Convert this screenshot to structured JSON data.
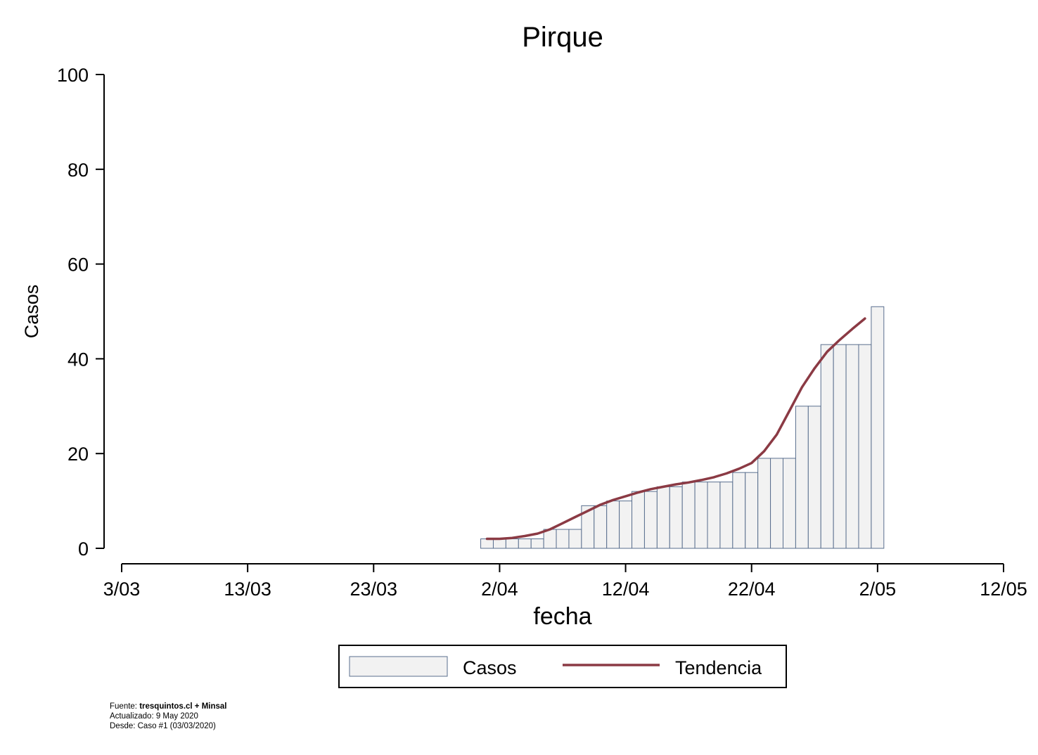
{
  "chart_data": {
    "type": "bar",
    "title": "Pirque",
    "xlabel": "fecha",
    "ylabel": "Casos",
    "ylim": [
      0,
      100
    ],
    "yticks": [
      0,
      20,
      40,
      60,
      80,
      100
    ],
    "xlim": [
      "2020-03-03",
      "2020-05-12"
    ],
    "xticks": [
      {
        "date": "2020-03-03",
        "label": "3/03"
      },
      {
        "date": "2020-03-13",
        "label": "13/03"
      },
      {
        "date": "2020-03-23",
        "label": "23/03"
      },
      {
        "date": "2020-04-02",
        "label": "2/04"
      },
      {
        "date": "2020-04-12",
        "label": "12/04"
      },
      {
        "date": "2020-04-22",
        "label": "22/04"
      },
      {
        "date": "2020-05-02",
        "label": "2/05"
      },
      {
        "date": "2020-05-12",
        "label": "12/05"
      }
    ],
    "grid": false,
    "legend_position": "bottom",
    "series": [
      {
        "name": "Casos",
        "kind": "bar",
        "color": "#f2f2f2",
        "edge_color": "#5a6f8e",
        "points": [
          [
            "2020-04-01",
            2
          ],
          [
            "2020-04-02",
            2
          ],
          [
            "2020-04-03",
            2
          ],
          [
            "2020-04-04",
            2
          ],
          [
            "2020-04-05",
            2
          ],
          [
            "2020-04-06",
            4
          ],
          [
            "2020-04-07",
            4
          ],
          [
            "2020-04-08",
            4
          ],
          [
            "2020-04-09",
            9
          ],
          [
            "2020-04-10",
            9
          ],
          [
            "2020-04-11",
            10
          ],
          [
            "2020-04-12",
            10
          ],
          [
            "2020-04-13",
            12
          ],
          [
            "2020-04-14",
            12
          ],
          [
            "2020-04-15",
            13
          ],
          [
            "2020-04-16",
            13
          ],
          [
            "2020-04-17",
            14
          ],
          [
            "2020-04-18",
            14
          ],
          [
            "2020-04-19",
            14
          ],
          [
            "2020-04-20",
            14
          ],
          [
            "2020-04-21",
            16
          ],
          [
            "2020-04-22",
            16
          ],
          [
            "2020-04-23",
            19
          ],
          [
            "2020-04-24",
            19
          ],
          [
            "2020-04-25",
            19
          ],
          [
            "2020-04-26",
            30
          ],
          [
            "2020-04-27",
            30
          ],
          [
            "2020-04-28",
            43
          ],
          [
            "2020-04-29",
            43
          ],
          [
            "2020-04-30",
            43
          ],
          [
            "2020-05-01",
            43
          ],
          [
            "2020-05-02",
            51
          ]
        ]
      },
      {
        "name": "Tendencia",
        "kind": "line",
        "color": "#8b3a44",
        "points": [
          [
            "2020-04-01",
            2.0
          ],
          [
            "2020-04-02",
            2.0
          ],
          [
            "2020-04-03",
            2.2
          ],
          [
            "2020-04-04",
            2.6
          ],
          [
            "2020-04-05",
            3.1
          ],
          [
            "2020-04-06",
            4.0
          ],
          [
            "2020-04-07",
            5.3
          ],
          [
            "2020-04-08",
            6.6
          ],
          [
            "2020-04-09",
            7.9
          ],
          [
            "2020-04-10",
            9.2
          ],
          [
            "2020-04-11",
            10.2
          ],
          [
            "2020-04-12",
            11.0
          ],
          [
            "2020-04-13",
            11.8
          ],
          [
            "2020-04-14",
            12.5
          ],
          [
            "2020-04-15",
            13.0
          ],
          [
            "2020-04-16",
            13.5
          ],
          [
            "2020-04-17",
            13.9
          ],
          [
            "2020-04-18",
            14.4
          ],
          [
            "2020-04-19",
            15.0
          ],
          [
            "2020-04-20",
            15.8
          ],
          [
            "2020-04-21",
            16.8
          ],
          [
            "2020-04-22",
            18.0
          ],
          [
            "2020-04-23",
            20.5
          ],
          [
            "2020-04-24",
            24.0
          ],
          [
            "2020-04-25",
            29.0
          ],
          [
            "2020-04-26",
            34.0
          ],
          [
            "2020-04-27",
            38.0
          ],
          [
            "2020-04-28",
            41.5
          ],
          [
            "2020-04-29",
            44.0
          ],
          [
            "2020-04-30",
            46.3
          ],
          [
            "2020-05-01",
            48.5
          ]
        ]
      }
    ]
  },
  "footnote": {
    "source_prefix": "Fuente: ",
    "source_bold": "tresquintos.cl + Minsal",
    "updated": "Actualizado: 9 May 2020",
    "since": "Desde: Caso #1  (03/03/2020)"
  }
}
